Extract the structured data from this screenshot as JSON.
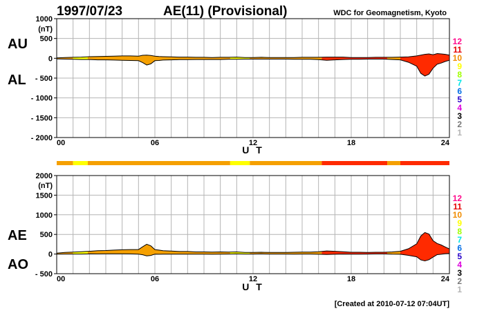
{
  "header": {
    "date": "1997/07/23",
    "index_title": "AE(11) (Provisional)",
    "organization": "WDC for Geomagnetism, Kyoto"
  },
  "footer": {
    "created": "[Created at 2010-07-12 07:04UT]"
  },
  "colors": {
    "grid": "#b4b4b4",
    "frame": "#000000",
    "fill_levels": {
      "9": "#ffff00",
      "10": "#f5a000",
      "11": "#ff2a00"
    }
  },
  "legend": {
    "levels": [
      {
        "label": "12",
        "color": "#ff0a8c"
      },
      {
        "label": "11",
        "color": "#e60000"
      },
      {
        "label": "10",
        "color": "#f08c00"
      },
      {
        "label": "9",
        "color": "#ffff00"
      },
      {
        "label": "8",
        "color": "#a0ff00"
      },
      {
        "label": "7",
        "color": "#00e6e6"
      },
      {
        "label": "6",
        "color": "#006ee6"
      },
      {
        "label": "5",
        "color": "#2800c8"
      },
      {
        "label": "4",
        "color": "#dc00dc"
      },
      {
        "label": "3",
        "color": "#000000"
      },
      {
        "label": "2",
        "color": "#787878"
      },
      {
        "label": "1",
        "color": "#b4b4b4"
      }
    ]
  },
  "chart_data": [
    {
      "type": "area",
      "panel": "AU/AL",
      "left_label_top": "AU",
      "left_label_bottom": "AL",
      "unit": "(nT)",
      "xlabel": "U T",
      "xlim": [
        0,
        24
      ],
      "x_ticks": [
        "00",
        "06",
        "12",
        "18",
        "24"
      ],
      "ylim": [
        -2000,
        1000
      ],
      "y_ticks": [
        "1000",
        "500",
        "0",
        "- 500",
        "- 1000",
        "- 1500",
        "- 2000"
      ],
      "y_tick_values": [
        1000,
        500,
        0,
        -500,
        -1000,
        -1500,
        -2000
      ],
      "x": [
        0,
        0.5,
        1,
        1.5,
        2,
        2.5,
        3,
        3.5,
        4,
        4.5,
        5,
        5.25,
        5.5,
        5.75,
        6,
        6.25,
        6.5,
        7,
        7.5,
        8,
        8.5,
        9,
        9.5,
        10,
        10.5,
        11,
        11.5,
        12,
        12.5,
        13,
        13.5,
        14,
        14.5,
        15,
        15.5,
        16,
        16.5,
        17,
        17.5,
        18,
        18.5,
        19,
        19.5,
        20,
        20.5,
        21,
        21.5,
        22,
        22.25,
        22.5,
        22.75,
        23,
        23.25,
        23.5,
        23.75,
        24
      ],
      "series": [
        {
          "name": "AU",
          "values": [
            10,
            20,
            25,
            30,
            40,
            45,
            50,
            55,
            60,
            60,
            55,
            75,
            80,
            70,
            55,
            45,
            40,
            35,
            30,
            30,
            25,
            25,
            20,
            25,
            25,
            30,
            20,
            20,
            25,
            20,
            20,
            20,
            20,
            25,
            25,
            25,
            30,
            30,
            30,
            20,
            20,
            20,
            25,
            25,
            25,
            30,
            35,
            60,
            80,
            100,
            110,
            90,
            120,
            110,
            100,
            80
          ]
        },
        {
          "name": "AL",
          "values": [
            -15,
            -20,
            -25,
            -30,
            -30,
            -40,
            -40,
            -45,
            -50,
            -55,
            -60,
            -110,
            -170,
            -140,
            -60,
            -55,
            -45,
            -40,
            -35,
            -35,
            -30,
            -30,
            -30,
            -30,
            -25,
            -25,
            -20,
            -20,
            -20,
            -20,
            -20,
            -20,
            -25,
            -25,
            -25,
            -35,
            -50,
            -40,
            -30,
            -25,
            -25,
            -20,
            -20,
            -20,
            -30,
            -40,
            -100,
            -200,
            -380,
            -450,
            -400,
            -250,
            -150,
            -120,
            -80,
            -50
          ]
        }
      ]
    },
    {
      "type": "area",
      "panel": "AE/AO",
      "left_label_top": "AE",
      "left_label_bottom": "AO",
      "unit": "(nT)",
      "xlabel": "U T",
      "xlim": [
        0,
        24
      ],
      "x_ticks": [
        "00",
        "06",
        "12",
        "18",
        "24"
      ],
      "ylim": [
        -500,
        2000
      ],
      "y_ticks": [
        "2000",
        "(nT)",
        "1500",
        "1000",
        "500",
        "0",
        "- 500"
      ],
      "y_tick_values": [
        2000,
        1500,
        1000,
        500,
        0,
        -500
      ],
      "x": [
        0,
        0.5,
        1,
        1.5,
        2,
        2.5,
        3,
        3.5,
        4,
        4.5,
        5,
        5.25,
        5.5,
        5.75,
        6,
        6.25,
        6.5,
        7,
        7.5,
        8,
        8.5,
        9,
        9.5,
        10,
        10.5,
        11,
        11.5,
        12,
        12.5,
        13,
        13.5,
        14,
        14.5,
        15,
        15.5,
        16,
        16.5,
        17,
        17.5,
        18,
        18.5,
        19,
        19.5,
        20,
        20.5,
        21,
        21.5,
        22,
        22.25,
        22.5,
        22.75,
        23,
        23.25,
        23.5,
        23.75,
        24
      ],
      "series": [
        {
          "name": "AE",
          "values": [
            25,
            40,
            50,
            60,
            70,
            85,
            90,
            100,
            110,
            115,
            115,
            185,
            250,
            210,
            115,
            100,
            85,
            75,
            65,
            65,
            55,
            55,
            50,
            55,
            50,
            55,
            40,
            40,
            45,
            40,
            40,
            40,
            45,
            50,
            50,
            60,
            80,
            70,
            60,
            45,
            45,
            40,
            45,
            45,
            55,
            70,
            135,
            260,
            460,
            550,
            510,
            340,
            270,
            230,
            180,
            130
          ]
        },
        {
          "name": "AO",
          "values": [
            -3,
            0,
            0,
            0,
            5,
            3,
            5,
            5,
            5,
            3,
            -3,
            -18,
            -45,
            -35,
            -3,
            -5,
            -3,
            -3,
            -3,
            -3,
            -3,
            -3,
            -5,
            -3,
            0,
            3,
            0,
            0,
            3,
            0,
            0,
            0,
            -3,
            0,
            0,
            -5,
            -10,
            -5,
            0,
            -3,
            -3,
            0,
            3,
            3,
            -3,
            -5,
            -33,
            -70,
            -150,
            -175,
            -145,
            -80,
            -15,
            -5,
            10,
            15
          ]
        }
      ]
    }
  ],
  "activity_bar": [
    {
      "start": 0,
      "end": 1.0,
      "level": "10"
    },
    {
      "start": 1.0,
      "end": 1.9,
      "level": "9"
    },
    {
      "start": 1.9,
      "end": 10.6,
      "level": "10"
    },
    {
      "start": 10.6,
      "end": 11.8,
      "level": "9"
    },
    {
      "start": 11.8,
      "end": 16.2,
      "level": "10"
    },
    {
      "start": 16.2,
      "end": 20.2,
      "level": "11"
    },
    {
      "start": 20.2,
      "end": 21.0,
      "level": "10"
    },
    {
      "start": 21.0,
      "end": 24.0,
      "level": "11"
    }
  ],
  "panel_levels": [
    [
      {
        "start": 0,
        "end": 1.0,
        "level": "10"
      },
      {
        "start": 1.0,
        "end": 1.9,
        "level": "9"
      },
      {
        "start": 1.9,
        "end": 10.6,
        "level": "10"
      },
      {
        "start": 10.6,
        "end": 11.8,
        "level": "9"
      },
      {
        "start": 11.8,
        "end": 16.2,
        "level": "10"
      },
      {
        "start": 16.2,
        "end": 20.2,
        "level": "11"
      },
      {
        "start": 20.2,
        "end": 21.0,
        "level": "10"
      },
      {
        "start": 21.0,
        "end": 24.0,
        "level": "11"
      }
    ],
    [
      {
        "start": 0,
        "end": 1.0,
        "level": "10"
      },
      {
        "start": 1.0,
        "end": 1.9,
        "level": "9"
      },
      {
        "start": 1.9,
        "end": 10.6,
        "level": "10"
      },
      {
        "start": 10.6,
        "end": 11.8,
        "level": "9"
      },
      {
        "start": 11.8,
        "end": 16.2,
        "level": "10"
      },
      {
        "start": 16.2,
        "end": 20.2,
        "level": "11"
      },
      {
        "start": 20.2,
        "end": 21.0,
        "level": "10"
      },
      {
        "start": 21.0,
        "end": 24.0,
        "level": "11"
      }
    ]
  ]
}
